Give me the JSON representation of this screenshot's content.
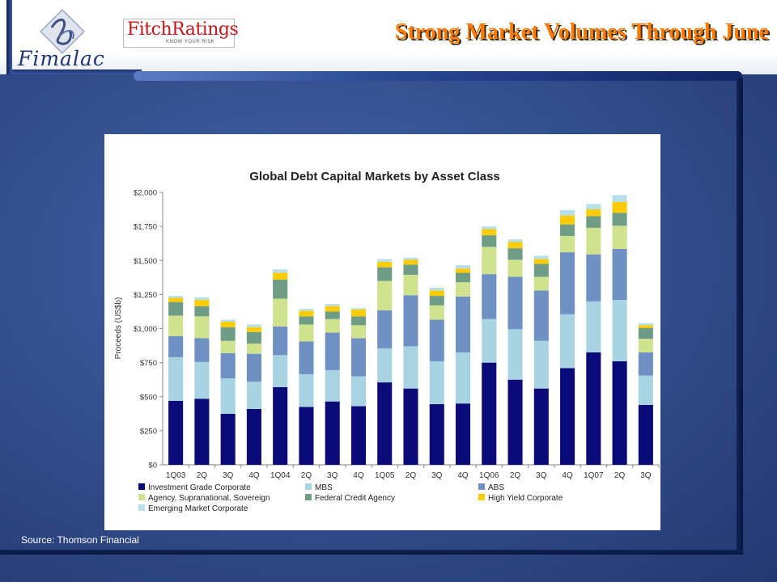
{
  "header": {
    "brand_left": "Fimalac",
    "brand_right": "FitchRatings",
    "brand_right_tagline": "KNOW YOUR RISK",
    "title": "Strong Market Volumes Through June"
  },
  "footer": {
    "source": "Source: Thomson Financial"
  },
  "colors": {
    "title": "#ff7a00",
    "background": "#34508f",
    "series": [
      "#0a0a78",
      "#a8d3e3",
      "#6e90c2",
      "#cfe38f",
      "#6f9c85",
      "#ffcc00",
      "#b7dfe9"
    ]
  },
  "chart_data": {
    "type": "bar",
    "stacked": true,
    "title": "Global Debt Capital Markets by Asset Class",
    "xlabel": "",
    "ylabel": "Proceeds (US$b)",
    "ylim": [
      0,
      2000
    ],
    "yticks": [
      "$0",
      "$250",
      "$500",
      "$750",
      "$1,000",
      "$1,250",
      "$1,500",
      "$1,750",
      "$2,000"
    ],
    "ytick_values": [
      0,
      250,
      500,
      750,
      1000,
      1250,
      1500,
      1750,
      2000
    ],
    "categories": [
      "1Q03",
      "2Q",
      "3Q",
      "4Q",
      "1Q04",
      "2Q",
      "3Q",
      "4Q",
      "1Q05",
      "2Q",
      "3Q",
      "4Q",
      "1Q06",
      "2Q",
      "3Q",
      "4Q",
      "1Q07",
      "2Q",
      "3Q"
    ],
    "legend_position": "bottom",
    "grid": false,
    "series": [
      {
        "name": "Investment Grade Corporate",
        "values": [
          470,
          485,
          375,
          410,
          570,
          425,
          465,
          430,
          605,
          560,
          445,
          450,
          750,
          625,
          560,
          710,
          825,
          760,
          440
        ]
      },
      {
        "name": "MBS",
        "values": [
          320,
          270,
          260,
          200,
          235,
          240,
          230,
          220,
          250,
          310,
          315,
          375,
          320,
          370,
          350,
          395,
          375,
          450,
          215
        ]
      },
      {
        "name": "ABS",
        "values": [
          155,
          175,
          185,
          205,
          210,
          240,
          275,
          280,
          280,
          375,
          305,
          410,
          330,
          385,
          370,
          455,
          345,
          375,
          170
        ]
      },
      {
        "name": "Agency, Supranational, Sovereign",
        "values": [
          150,
          160,
          90,
          75,
          205,
          125,
          100,
          95,
          215,
          150,
          105,
          105,
          200,
          125,
          100,
          120,
          195,
          170,
          100
        ]
      },
      {
        "name": "Federal Credit Agency",
        "values": [
          100,
          75,
          100,
          85,
          140,
          60,
          55,
          65,
          100,
          75,
          70,
          70,
          85,
          85,
          95,
          85,
          85,
          95,
          80
        ]
      },
      {
        "name": "High Yield Corporate",
        "values": [
          30,
          45,
          40,
          35,
          50,
          40,
          40,
          50,
          40,
          35,
          40,
          30,
          45,
          45,
          35,
          65,
          50,
          80,
          20
        ]
      },
      {
        "name": "Emerging Market Corporate",
        "values": [
          15,
          20,
          15,
          20,
          25,
          15,
          15,
          10,
          20,
          15,
          20,
          25,
          20,
          20,
          25,
          40,
          40,
          50,
          15
        ]
      }
    ]
  }
}
